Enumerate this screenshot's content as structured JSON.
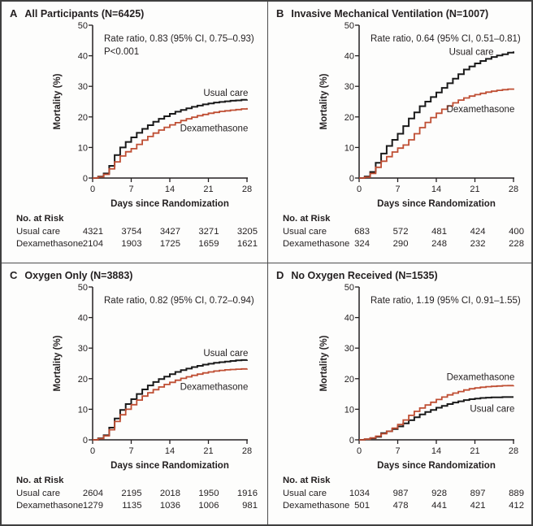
{
  "figure": {
    "colors": {
      "usual_care_curve": "#1a1a1a",
      "dexamethasone_curve": "#bf4e33",
      "text": "#231f20",
      "border": "#3f3f3f"
    }
  },
  "chart_data": [
    {
      "type": "line",
      "subtype": "kaplan-meier-step",
      "panel_letter": "A",
      "title": "All Participants (N=6425)",
      "annotation": [
        "Rate ratio, 0.83 (95% CI, 0.75–0.93)",
        "P<0.001"
      ],
      "xlabel": "Days since Randomization",
      "ylabel": "Mortality (%)",
      "xlim": [
        0,
        28
      ],
      "ylim": [
        0,
        50
      ],
      "x_ticks": [
        0,
        7,
        14,
        21,
        28
      ],
      "y_ticks": [
        0,
        10,
        20,
        30,
        40,
        50
      ],
      "legend_position": "inline-curve-labels",
      "grid": false,
      "series": [
        {
          "name": "Usual care",
          "color": "#1a1a1a",
          "width": 2,
          "label_pos": {
            "x_day": 28.2,
            "y_pct": 26.9,
            "anchor": "end"
          },
          "mortality_pct_by_day": [
            0,
            0.5,
            1.5,
            4,
            7.5,
            10,
            11.8,
            13.3,
            14.8,
            16.1,
            17.3,
            18.4,
            19.4,
            20.2,
            21.0,
            21.7,
            22.3,
            22.8,
            23.3,
            23.7,
            24.1,
            24.4,
            24.7,
            24.9,
            25.1,
            25.3,
            25.4,
            25.6,
            25.7
          ]
        },
        {
          "name": "Dexamethasone",
          "color": "#bf4e33",
          "width": 1.8,
          "label_pos": {
            "x_day": 28.2,
            "y_pct": 15.3,
            "anchor": "end"
          },
          "mortality_pct_by_day": [
            0,
            0.4,
            1.2,
            3,
            5.3,
            7.2,
            8.6,
            9.6,
            11.0,
            12.4,
            13.6,
            14.7,
            15.7,
            16.6,
            17.4,
            18.1,
            18.8,
            19.4,
            19.9,
            20.4,
            20.8,
            21.2,
            21.5,
            21.8,
            22.0,
            22.2,
            22.4,
            22.6,
            22.9
          ]
        }
      ],
      "no_at_risk": {
        "header": "No. at Risk",
        "days": [
          0,
          7,
          14,
          21,
          28
        ],
        "rows": [
          {
            "label": "Usual care",
            "values": [
              4321,
              3754,
              3427,
              3271,
              3205
            ]
          },
          {
            "label": "Dexamethasone",
            "values": [
              2104,
              1903,
              1725,
              1659,
              1621
            ]
          }
        ]
      }
    },
    {
      "type": "line",
      "subtype": "kaplan-meier-step",
      "panel_letter": "B",
      "title": "Invasive Mechanical Ventilation (N=1007)",
      "annotation": [
        "Rate ratio, 0.64 (95% CI, 0.51–0.81)"
      ],
      "xlabel": "Days since Randomization",
      "ylabel": "Mortality (%)",
      "xlim": [
        0,
        28
      ],
      "ylim": [
        0,
        50
      ],
      "x_ticks": [
        0,
        7,
        14,
        21,
        28
      ],
      "y_ticks": [
        0,
        10,
        20,
        30,
        40,
        50
      ],
      "legend_position": "inline-curve-labels",
      "grid": false,
      "series": [
        {
          "name": "Usual care",
          "color": "#1a1a1a",
          "width": 2,
          "label_pos": {
            "x_day": 24.4,
            "y_pct": 40.3,
            "anchor": "end"
          },
          "mortality_pct_by_day": [
            0,
            0.5,
            2,
            5,
            8,
            10.5,
            12.5,
            14.5,
            17,
            19.5,
            21.5,
            23.5,
            25,
            26.5,
            28,
            29.5,
            31,
            32.5,
            34,
            35.5,
            36.5,
            37.5,
            38.3,
            39,
            39.6,
            40.1,
            40.5,
            41,
            41.4
          ]
        },
        {
          "name": "Dexamethasone",
          "color": "#bf4e33",
          "width": 1.8,
          "label_pos": {
            "x_day": 28.2,
            "y_pct": 21.6,
            "anchor": "end"
          },
          "mortality_pct_by_day": [
            0,
            0.3,
            1.5,
            3.5,
            5.5,
            7,
            8.5,
            9.8,
            10.8,
            12.5,
            14.5,
            16.5,
            18.2,
            19.8,
            21.2,
            22.5,
            23.6,
            24.6,
            25.5,
            26.2,
            26.8,
            27.3,
            27.7,
            28.1,
            28.4,
            28.7,
            28.9,
            29.1,
            29.3
          ]
        }
      ],
      "no_at_risk": {
        "header": "No. at Risk",
        "days": [
          0,
          7,
          14,
          21,
          28
        ],
        "rows": [
          {
            "label": "Usual care",
            "values": [
              683,
              572,
              481,
              424,
              400
            ]
          },
          {
            "label": "Dexamethasone",
            "values": [
              324,
              290,
              248,
              232,
              228
            ]
          }
        ]
      }
    },
    {
      "type": "line",
      "subtype": "kaplan-meier-step",
      "panel_letter": "C",
      "title": "Oxygen Only (N=3883)",
      "annotation": [
        "Rate ratio, 0.82 (95% CI, 0.72–0.94)"
      ],
      "xlabel": "Days since Randomization",
      "ylabel": "Mortality (%)",
      "xlim": [
        0,
        28
      ],
      "ylim": [
        0,
        50
      ],
      "x_ticks": [
        0,
        7,
        14,
        21,
        28
      ],
      "y_ticks": [
        0,
        10,
        20,
        30,
        40,
        50
      ],
      "legend_position": "inline-curve-labels",
      "grid": false,
      "series": [
        {
          "name": "Usual care",
          "color": "#1a1a1a",
          "width": 2,
          "label_pos": {
            "x_day": 28.2,
            "y_pct": 27.4,
            "anchor": "end"
          },
          "mortality_pct_by_day": [
            0,
            0.5,
            1.5,
            4,
            7,
            9.8,
            11.7,
            13.3,
            15,
            16.5,
            17.8,
            18.9,
            19.9,
            20.7,
            21.5,
            22.2,
            22.8,
            23.3,
            23.8,
            24.2,
            24.6,
            24.9,
            25.2,
            25.4,
            25.6,
            25.8,
            26.0,
            26.1,
            26.2
          ]
        },
        {
          "name": "Dexamethasone",
          "color": "#bf4e33",
          "width": 1.8,
          "label_pos": {
            "x_day": 28.2,
            "y_pct": 16.4,
            "anchor": "end"
          },
          "mortality_pct_by_day": [
            0,
            0.4,
            1.3,
            3.3,
            6,
            8.2,
            10,
            11.5,
            13,
            14.3,
            15.4,
            16.4,
            17.3,
            18.1,
            18.8,
            19.5,
            20.1,
            20.6,
            21.1,
            21.5,
            21.9,
            22.2,
            22.5,
            22.7,
            22.9,
            23.0,
            23.1,
            23.2,
            23.3
          ]
        }
      ],
      "no_at_risk": {
        "header": "No. at Risk",
        "days": [
          0,
          7,
          14,
          21,
          28
        ],
        "rows": [
          {
            "label": "Usual care",
            "values": [
              2604,
              2195,
              2018,
              1950,
              1916
            ]
          },
          {
            "label": "Dexamethasone",
            "values": [
              1279,
              1135,
              1036,
              1006,
              981
            ]
          }
        ]
      }
    },
    {
      "type": "line",
      "subtype": "kaplan-meier-step",
      "panel_letter": "D",
      "title": "No Oxygen Received (N=1535)",
      "annotation": [
        "Rate ratio, 1.19 (95% CI, 0.91–1.55)"
      ],
      "xlabel": "Days since Randomization",
      "ylabel": "Mortality (%)",
      "xlim": [
        0,
        28
      ],
      "ylim": [
        0,
        50
      ],
      "x_ticks": [
        0,
        7,
        14,
        21,
        28
      ],
      "y_ticks": [
        0,
        10,
        20,
        30,
        40,
        50
      ],
      "legend_position": "inline-curve-labels",
      "grid": false,
      "series": [
        {
          "name": "Usual care",
          "color": "#1a1a1a",
          "width": 2,
          "label_pos": {
            "x_day": 28.2,
            "y_pct": 9.2,
            "anchor": "end"
          },
          "mortality_pct_by_day": [
            0,
            0.2,
            0.5,
            1,
            2.2,
            2.8,
            3.5,
            4.4,
            5.4,
            6.4,
            7.4,
            8.3,
            9.1,
            9.8,
            10.5,
            11.1,
            11.7,
            12.2,
            12.6,
            13,
            13.3,
            13.5,
            13.7,
            13.8,
            13.9,
            13.9,
            14,
            14,
            14
          ]
        },
        {
          "name": "Dexamethasone",
          "color": "#bf4e33",
          "width": 1.8,
          "label_pos": {
            "x_day": 28.2,
            "y_pct": 19.6,
            "anchor": "end"
          },
          "mortality_pct_by_day": [
            0,
            0.2,
            0.6,
            1.2,
            2,
            2.8,
            3.8,
            5,
            6.5,
            8,
            9.3,
            10.4,
            11.4,
            12.3,
            13.2,
            14,
            14.7,
            15.3,
            15.8,
            16.3,
            16.7,
            17,
            17.2,
            17.4,
            17.5,
            17.6,
            17.7,
            17.75,
            17.8
          ]
        }
      ],
      "no_at_risk": {
        "header": "No. at Risk",
        "days": [
          0,
          7,
          14,
          21,
          28
        ],
        "rows": [
          {
            "label": "Usual care",
            "values": [
              1034,
              987,
              928,
              897,
              889
            ]
          },
          {
            "label": "Dexamethasone",
            "values": [
              501,
              478,
              441,
              421,
              412
            ]
          }
        ]
      }
    }
  ]
}
